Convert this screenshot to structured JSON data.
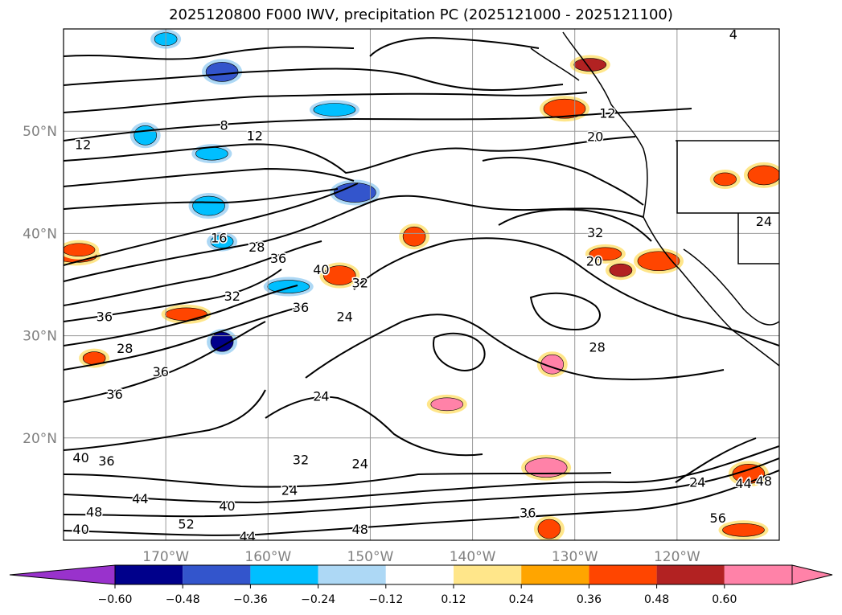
{
  "chart_data": {
    "type": "contour_map",
    "title": "2025120800 F000 IWV, precipitation PC (2025121000 - 2025121100)",
    "x_ticks": [
      "170°W",
      "160°W",
      "150°W",
      "140°W",
      "130°W",
      "120°W"
    ],
    "x_tick_values": [
      -170,
      -160,
      -150,
      -140,
      -130,
      -120
    ],
    "y_ticks": [
      "20°N",
      "30°N",
      "40°N",
      "50°N"
    ],
    "y_tick_values": [
      20,
      30,
      40,
      50
    ],
    "xlim": [
      -180,
      -110
    ],
    "ylim": [
      10,
      60
    ],
    "grid": true,
    "colorbar": {
      "orientation": "horizontal",
      "extend": "both",
      "ticks": [
        "−0.60",
        "−0.48",
        "−0.36",
        "−0.24",
        "−0.12",
        "0.12",
        "0.24",
        "0.36",
        "0.48",
        "0.60"
      ],
      "colors": [
        "#9932cc",
        "#00008b",
        "#3355cc",
        "#00bfff",
        "#add8f5",
        "#ffffff",
        "#ffe68a",
        "#ffa500",
        "#ff4500",
        "#b22222",
        "#ff82a8"
      ]
    },
    "contour_labels": [
      {
        "text": "4",
        "lon": -114.5,
        "lat": 59.5
      },
      {
        "text": "12",
        "lon": -126.8,
        "lat": 51.8
      },
      {
        "text": "20",
        "lon": -128,
        "lat": 49.5
      },
      {
        "text": "8",
        "lon": -164.3,
        "lat": 50.6
      },
      {
        "text": "12",
        "lon": -161.3,
        "lat": 49.6
      },
      {
        "text": "12",
        "lon": -178.1,
        "lat": 48.7
      },
      {
        "text": "24",
        "lon": -111.5,
        "lat": 41.2
      },
      {
        "text": "32",
        "lon": -128,
        "lat": 40.1
      },
      {
        "text": "16",
        "lon": -164.8,
        "lat": 39.6
      },
      {
        "text": "28",
        "lon": -161.1,
        "lat": 38.7
      },
      {
        "text": "36",
        "lon": -159,
        "lat": 37.6
      },
      {
        "text": "20",
        "lon": -128.1,
        "lat": 37.3
      },
      {
        "text": "40",
        "lon": -154.8,
        "lat": 36.5
      },
      {
        "text": "32",
        "lon": -151,
        "lat": 35.2
      },
      {
        "text": "32",
        "lon": -163.5,
        "lat": 33.9
      },
      {
        "text": "36",
        "lon": -156.8,
        "lat": 32.8
      },
      {
        "text": "36",
        "lon": -176,
        "lat": 31.9
      },
      {
        "text": "24",
        "lon": -152.5,
        "lat": 31.9
      },
      {
        "text": "28",
        "lon": -127.8,
        "lat": 28.9
      },
      {
        "text": "28",
        "lon": -174,
        "lat": 28.8
      },
      {
        "text": "36",
        "lon": -170.5,
        "lat": 26.5
      },
      {
        "text": "24",
        "lon": -154.8,
        "lat": 24.1
      },
      {
        "text": "36",
        "lon": -175,
        "lat": 24.3
      },
      {
        "text": "40",
        "lon": -178.3,
        "lat": 18.1
      },
      {
        "text": "36",
        "lon": -175.8,
        "lat": 17.8
      },
      {
        "text": "32",
        "lon": -156.8,
        "lat": 17.9
      },
      {
        "text": "24",
        "lon": -151,
        "lat": 17.5
      },
      {
        "text": "24",
        "lon": -118,
        "lat": 15.7
      },
      {
        "text": "44",
        "lon": -172.5,
        "lat": 14.1
      },
      {
        "text": "24",
        "lon": -157.9,
        "lat": 14.9
      },
      {
        "text": "40",
        "lon": -164,
        "lat": 13.4
      },
      {
        "text": "44",
        "lon": -113.5,
        "lat": 15.6
      },
      {
        "text": "48",
        "lon": -111.5,
        "lat": 15.8
      },
      {
        "text": "56",
        "lon": -116,
        "lat": 12.2
      },
      {
        "text": "36",
        "lon": -134.6,
        "lat": 12.7
      },
      {
        "text": "48",
        "lon": -177,
        "lat": 12.8
      },
      {
        "text": "52",
        "lon": -168,
        "lat": 11.6
      },
      {
        "text": "40",
        "lon": -178.3,
        "lat": 11.1
      },
      {
        "text": "48",
        "lon": -151,
        "lat": 11.1
      },
      {
        "text": "44",
        "lon": -162,
        "lat": 10.4
      }
    ],
    "precip_regions": [
      {
        "lon": -170,
        "lat": 59,
        "value": -0.36
      },
      {
        "lon": -164.5,
        "lat": 55.8,
        "value": -0.48
      },
      {
        "lon": -153.5,
        "lat": 52.1,
        "value": -0.36
      },
      {
        "lon": -172,
        "lat": 49.6,
        "value": -0.36
      },
      {
        "lon": -165.5,
        "lat": 47.8,
        "value": -0.36
      },
      {
        "lon": -151.5,
        "lat": 44,
        "value": -0.48
      },
      {
        "lon": -164.5,
        "lat": 39.2,
        "value": -0.36
      },
      {
        "lon": -165.8,
        "lat": 42.7,
        "value": -0.36
      },
      {
        "lon": -158,
        "lat": 34.8,
        "value": -0.36
      },
      {
        "lon": -164.5,
        "lat": 29.4,
        "value": -0.6
      },
      {
        "lon": -128.5,
        "lat": 56.5,
        "value": 0.48
      },
      {
        "lon": -131,
        "lat": 52.2,
        "value": 0.36
      },
      {
        "lon": -115.3,
        "lat": 45.3,
        "value": 0.36
      },
      {
        "lon": -111.5,
        "lat": 45.7,
        "value": 0.36
      },
      {
        "lon": -178.8,
        "lat": 37.8,
        "value": 0.36
      },
      {
        "lon": -145.7,
        "lat": 39.7,
        "value": 0.36
      },
      {
        "lon": -127,
        "lat": 38,
        "value": 0.36
      },
      {
        "lon": -121.8,
        "lat": 37.3,
        "value": 0.36
      },
      {
        "lon": -125.5,
        "lat": 36.4,
        "value": 0.48
      },
      {
        "lon": -153,
        "lat": 35.9,
        "value": 0.36
      },
      {
        "lon": -168,
        "lat": 32.1,
        "value": 0.36
      },
      {
        "lon": -132.2,
        "lat": 27.2,
        "value": 0.6
      },
      {
        "lon": -142.5,
        "lat": 23.3,
        "value": 0.6
      },
      {
        "lon": -132.8,
        "lat": 17.1,
        "value": 0.6
      },
      {
        "lon": -177,
        "lat": 27.8,
        "value": 0.36
      },
      {
        "lon": -113,
        "lat": 16.5,
        "value": 0.36
      },
      {
        "lon": -113.5,
        "lat": 11,
        "value": 0.36
      },
      {
        "lon": -132.5,
        "lat": 11.1,
        "value": 0.36
      },
      {
        "lon": -178.5,
        "lat": 38.4,
        "value": 0.36
      }
    ]
  }
}
